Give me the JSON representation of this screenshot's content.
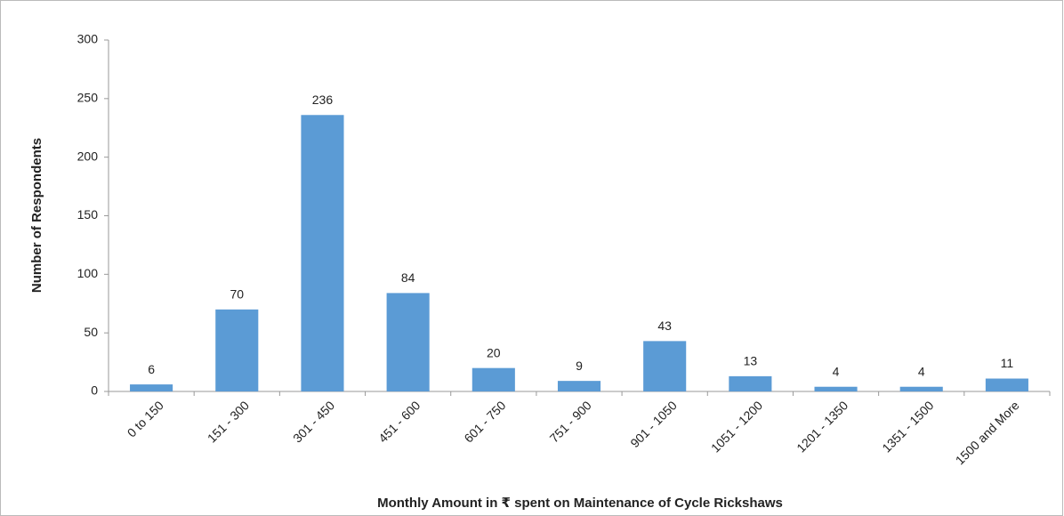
{
  "chart_data": {
    "type": "bar",
    "x_label": "Monthly Amount in ₹ spent on Maintenance of Cycle Rickshaws",
    "y_label": "Number of Respondents",
    "categories": [
      "0 to 150",
      "151 - 300",
      "301 - 450",
      "451 - 600",
      "601 - 750",
      "751 - 900",
      "901 - 1050",
      "1051 - 1200",
      "1201 - 1350",
      "1351 - 1500",
      "1500 and More"
    ],
    "values": [
      6,
      70,
      236,
      84,
      20,
      9,
      43,
      13,
      4,
      4,
      11
    ],
    "color": "#5b9bd5",
    "ylim": [
      0,
      300
    ],
    "yticks": [
      0,
      50,
      100,
      150,
      200,
      250,
      300
    ],
    "grid": false
  }
}
